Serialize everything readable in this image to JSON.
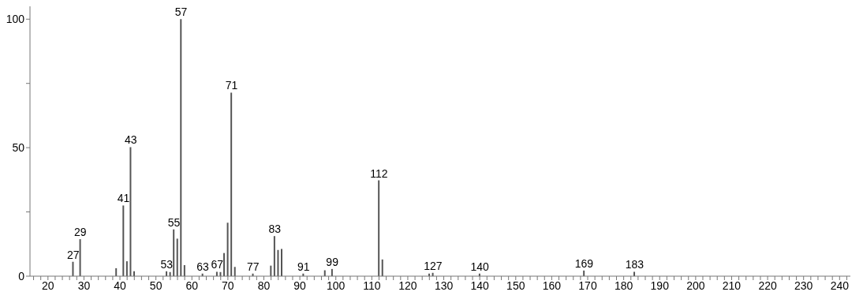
{
  "chart_data": {
    "type": "bar",
    "x": [
      27,
      29,
      39,
      41,
      42,
      43,
      44,
      53,
      54,
      55,
      56,
      57,
      58,
      63,
      67,
      68,
      69,
      70,
      71,
      72,
      77,
      82,
      83,
      84,
      85,
      91,
      97,
      99,
      112,
      113,
      126,
      127,
      140,
      169,
      183
    ],
    "values": [
      5.6,
      14.4,
      3.1,
      27.5,
      5.8,
      50.2,
      1.9,
      1.9,
      1.6,
      18.2,
      14.6,
      100,
      4.3,
      1,
      1.7,
      1.6,
      9.0,
      20.8,
      71.4,
      3.6,
      1,
      4.1,
      15.6,
      10.2,
      10.6,
      1,
      2.3,
      2.8,
      37.3,
      6.5,
      1,
      1.3,
      1,
      2.2,
      1.7
    ],
    "color": "#555555",
    "annotations": [
      {
        "text": "27",
        "x": 27,
        "y": 5.6
      },
      {
        "text": "29",
        "x": 29,
        "y": 14.4
      },
      {
        "text": "41",
        "x": 41,
        "y": 27.5
      },
      {
        "text": "43",
        "x": 43,
        "y": 50.2
      },
      {
        "text": "53",
        "x": 53,
        "y": 1.9
      },
      {
        "text": "55",
        "x": 55,
        "y": 18.2
      },
      {
        "text": "57",
        "x": 57,
        "y": 100
      },
      {
        "text": "63",
        "x": 63,
        "y": 1
      },
      {
        "text": "67",
        "x": 67,
        "y": 1.7
      },
      {
        "text": "71",
        "x": 71,
        "y": 71.4
      },
      {
        "text": "77",
        "x": 77,
        "y": 1
      },
      {
        "text": "83",
        "x": 83,
        "y": 15.6
      },
      {
        "text": "91",
        "x": 91,
        "y": 1
      },
      {
        "text": "99",
        "x": 99,
        "y": 2.8
      },
      {
        "text": "112",
        "x": 112,
        "y": 37.3
      },
      {
        "text": "127",
        "x": 127,
        "y": 1.3
      },
      {
        "text": "140",
        "x": 140,
        "y": 1
      },
      {
        "text": "169",
        "x": 169,
        "y": 2.2
      },
      {
        "text": "183",
        "x": 183,
        "y": 1.7
      }
    ],
    "xlim": [
      15,
      243
    ],
    "xticks": [
      {
        "value": 16,
        "label": null
      },
      {
        "value": 18,
        "label": null
      },
      20,
      {
        "value": 22,
        "label": null
      },
      {
        "value": 24,
        "label": null
      },
      {
        "value": 26,
        "label": null
      },
      {
        "value": 28,
        "label": null
      },
      30,
      {
        "value": 32,
        "label": null
      },
      {
        "value": 34,
        "label": null
      },
      {
        "value": 36,
        "label": null
      },
      {
        "value": 38,
        "label": null
      },
      40,
      {
        "value": 42,
        "label": null
      },
      {
        "value": 44,
        "label": null
      },
      {
        "value": 46,
        "label": null
      },
      {
        "value": 48,
        "label": null
      },
      50,
      {
        "value": 52,
        "label": null
      },
      {
        "value": 54,
        "label": null
      },
      {
        "value": 56,
        "label": null
      },
      {
        "value": 58,
        "label": null
      },
      60,
      {
        "value": 62,
        "label": null
      },
      {
        "value": 64,
        "label": null
      },
      {
        "value": 66,
        "label": null
      },
      {
        "value": 68,
        "label": null
      },
      70,
      {
        "value": 72,
        "label": null
      },
      {
        "value": 74,
        "label": null
      },
      {
        "value": 76,
        "label": null
      },
      {
        "value": 78,
        "label": null
      },
      80,
      {
        "value": 82,
        "label": null
      },
      {
        "value": 84,
        "label": null
      },
      {
        "value": 86,
        "label": null
      },
      {
        "value": 88,
        "label": null
      },
      90,
      {
        "value": 92,
        "label": null
      },
      {
        "value": 94,
        "label": null
      },
      {
        "value": 96,
        "label": null
      },
      {
        "value": 98,
        "label": null
      },
      100,
      {
        "value": 102,
        "label": null
      },
      {
        "value": 104,
        "label": null
      },
      {
        "value": 106,
        "label": null
      },
      {
        "value": 108,
        "label": null
      },
      110,
      {
        "value": 112,
        "label": null
      },
      {
        "value": 114,
        "label": null
      },
      {
        "value": 116,
        "label": null
      },
      {
        "value": 118,
        "label": null
      },
      120,
      {
        "value": 122,
        "label": null
      },
      {
        "value": 124,
        "label": null
      },
      {
        "value": 126,
        "label": null
      },
      {
        "value": 128,
        "label": null
      },
      130,
      {
        "value": 132,
        "label": null
      },
      {
        "value": 134,
        "label": null
      },
      {
        "value": 136,
        "label": null
      },
      {
        "value": 138,
        "label": null
      },
      140,
      {
        "value": 142,
        "label": null
      },
      {
        "value": 144,
        "label": null
      },
      {
        "value": 146,
        "label": null
      },
      {
        "value": 148,
        "label": null
      },
      150,
      {
        "value": 152,
        "label": null
      },
      {
        "value": 154,
        "label": null
      },
      {
        "value": 156,
        "label": null
      },
      {
        "value": 158,
        "label": null
      },
      160,
      {
        "value": 162,
        "label": null
      },
      {
        "value": 164,
        "label": null
      },
      {
        "value": 166,
        "label": null
      },
      {
        "value": 168,
        "label": null
      },
      170,
      {
        "value": 172,
        "label": null
      },
      {
        "value": 174,
        "label": null
      },
      {
        "value": 176,
        "label": null
      },
      {
        "value": 178,
        "label": null
      },
      180,
      {
        "value": 182,
        "label": null
      },
      {
        "value": 184,
        "label": null
      },
      {
        "value": 186,
        "label": null
      },
      {
        "value": 188,
        "label": null
      },
      190,
      {
        "value": 192,
        "label": null
      },
      {
        "value": 194,
        "label": null
      },
      {
        "value": 196,
        "label": null
      },
      {
        "value": 198,
        "label": null
      },
      200,
      {
        "value": 202,
        "label": null
      },
      {
        "value": 204,
        "label": null
      },
      {
        "value": 206,
        "label": null
      },
      {
        "value": 208,
        "label": null
      },
      210,
      {
        "value": 212,
        "label": null
      },
      {
        "value": 214,
        "label": null
      },
      {
        "value": 216,
        "label": null
      },
      {
        "value": 218,
        "label": null
      },
      220,
      {
        "value": 222,
        "label": null
      },
      {
        "value": 224,
        "label": null
      },
      {
        "value": 226,
        "label": null
      },
      {
        "value": 228,
        "label": null
      },
      230,
      {
        "value": 232,
        "label": null
      },
      {
        "value": 234,
        "label": null
      },
      {
        "value": 236,
        "label": null
      },
      {
        "value": 238,
        "label": null
      },
      240,
      {
        "value": 242,
        "label": null
      }
    ],
    "ylim": [
      0,
      105
    ],
    "yticks": [
      0,
      {
        "value": 25,
        "label": null
      },
      50,
      {
        "value": 75,
        "label": null
      },
      100
    ],
    "grid": false,
    "legend": false
  }
}
